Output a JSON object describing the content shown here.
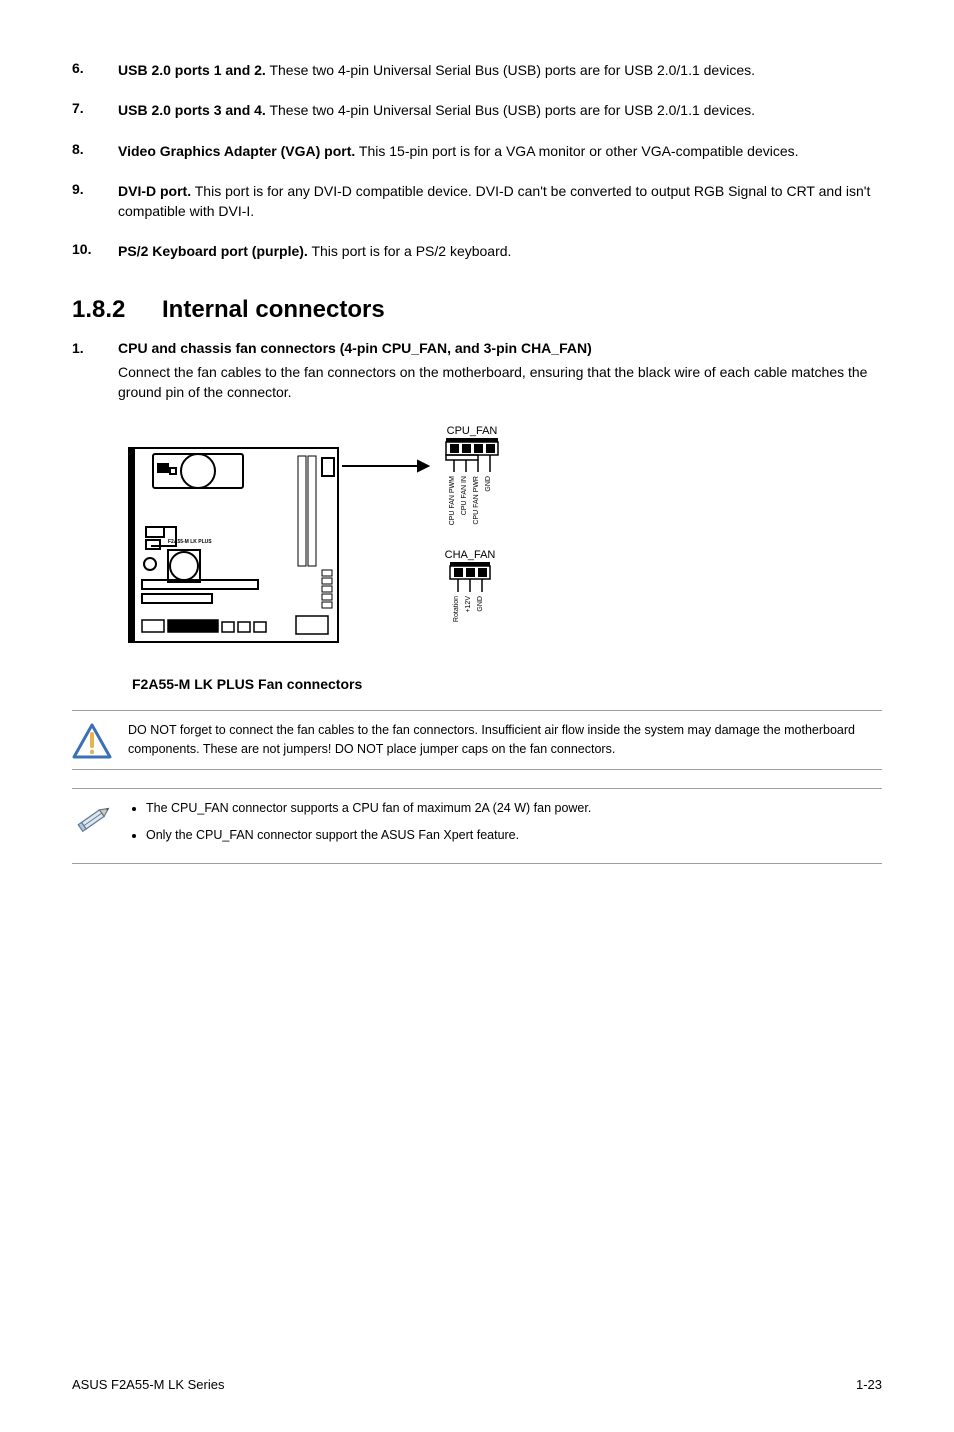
{
  "items": [
    {
      "num": "6.",
      "title": "USB 2.0 ports 1 and 2.",
      "text": " These two 4-pin Universal Serial Bus (USB) ports are for USB 2.0/1.1 devices."
    },
    {
      "num": "7.",
      "title": "USB 2.0 ports 3 and 4.",
      "text": " These two 4-pin Universal Serial Bus (USB) ports are for USB 2.0/1.1 devices."
    },
    {
      "num": "8.",
      "title": "Video Graphics Adapter (VGA) port.",
      "text": " This 15-pin port is for a VGA monitor or other VGA-compatible devices."
    },
    {
      "num": "9.",
      "title": "DVI-D port.",
      "text": " This port is for any DVI-D compatible device. DVI-D can't be converted to output RGB Signal to CRT and isn't compatible with DVI-I."
    },
    {
      "num": "10.",
      "title": "PS/2 Keyboard port (purple).",
      "text": " This port is for a PS/2 keyboard."
    }
  ],
  "section": {
    "num": "1.8.2",
    "title": "Internal connectors"
  },
  "sub": {
    "num": "1.",
    "title": "CPU and chassis fan connectors (4-pin CPU_FAN, and 3-pin CHA_FAN)",
    "desc": "Connect the fan cables to the fan connectors on the motherboard, ensuring that the black wire of each cable matches the ground pin of the connector."
  },
  "diagram": {
    "caption": "F2A55-M LK PLUS Fan connectors",
    "board_label": "F2A55-M LK PLUS",
    "cpu_fan": {
      "label": "CPU_FAN",
      "pins": [
        "CPU FAN PWM",
        "CPU FAN IN",
        "CPU FAN PWR",
        "GND"
      ]
    },
    "cha_fan": {
      "label": "CHA_FAN",
      "pins": [
        "Rotation",
        "+12V",
        "GND"
      ]
    },
    "colors": {
      "stroke": "#000000",
      "fill_light": "#ffffff",
      "fill_dark": "#000000",
      "fill_gray": "#7d7d7d"
    }
  },
  "warning_note": "DO NOT forget to connect the fan cables to the fan connectors. Insufficient air flow inside the system may damage the motherboard components. These are not jumpers! DO NOT place jumper caps on the fan connectors.",
  "pencil_notes": [
    "The CPU_FAN connector supports a CPU fan of maximum 2A (24 W) fan power.",
    "Only the CPU_FAN connector support the ASUS Fan Xpert feature."
  ],
  "footer": {
    "left": "ASUS F2A55-M LK Series",
    "right": "1-23"
  }
}
